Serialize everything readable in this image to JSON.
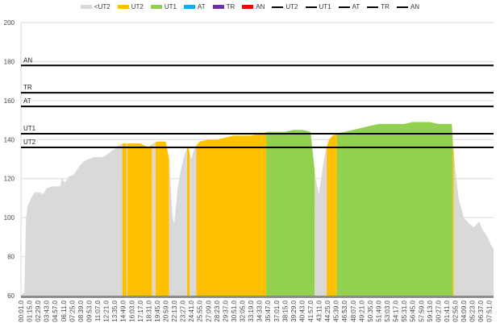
{
  "chart_data": {
    "type": "area",
    "title": "",
    "xlabel": "",
    "ylabel": "",
    "ylim": [
      60,
      200
    ],
    "yticks": [
      60,
      80,
      100,
      120,
      140,
      160,
      180,
      200
    ],
    "grid": "horizontal",
    "legend_position": "top",
    "legend": [
      {
        "name": "<UT2",
        "kind": "area",
        "color": "#d9d9d9"
      },
      {
        "name": "UT2",
        "kind": "area",
        "color": "#ffc000"
      },
      {
        "name": "UT1",
        "kind": "area",
        "color": "#92d050"
      },
      {
        "name": "AT",
        "kind": "area",
        "color": "#00b0f0"
      },
      {
        "name": "TR",
        "kind": "area",
        "color": "#7030a0"
      },
      {
        "name": "AN",
        "kind": "area",
        "color": "#ff0000"
      },
      {
        "name": "UT2",
        "kind": "line",
        "color": "#000000"
      },
      {
        "name": "UT1",
        "kind": "line",
        "color": "#000000"
      },
      {
        "name": "AT",
        "kind": "line",
        "color": "#000000"
      },
      {
        "name": "TR",
        "kind": "line",
        "color": "#000000"
      },
      {
        "name": "AN",
        "kind": "line",
        "color": "#000000"
      }
    ],
    "threshold_lines": [
      {
        "name": "UT2",
        "value": 136
      },
      {
        "name": "UT1",
        "value": 143
      },
      {
        "name": "AT",
        "value": 157
      },
      {
        "name": "TR",
        "value": 164
      },
      {
        "name": "AN",
        "value": 178
      }
    ],
    "x_tick_labels": [
      "00:01.0",
      "01:15.0",
      "02:29.0",
      "03:43.0",
      "04:57.0",
      "06:11.0",
      "07:25.0",
      "08:39.0",
      "09:53.0",
      "11:07.0",
      "12:21.0",
      "13:35.0",
      "14:49.0",
      "16:03.0",
      "17:17.0",
      "18:31.0",
      "19:45.0",
      "20:59.0",
      "22:13.0",
      "23:27.0",
      "24:41.0",
      "25:55.0",
      "27:09.0",
      "28:23.0",
      "29:37.0",
      "30:51.0",
      "32:05.0",
      "33:19.0",
      "34:33.0",
      "35:47.0",
      "37:01.0",
      "38:15.0",
      "39:29.0",
      "40:43.0",
      "41:57.0",
      "43:11.0",
      "44:25.0",
      "45:39.0",
      "46:53.0",
      "48:07.0",
      "49:21.0",
      "50:35.0",
      "51:49.0",
      "53:03.0",
      "54:17.0",
      "55:31.0",
      "56:45.0",
      "57:59.0",
      "59:13.0",
      "00:27.0",
      "01:41.0",
      "02:55.0",
      "04:09.0",
      "05:23.0",
      "06:37.0",
      "07:51.0"
    ],
    "series_profile": {
      "description": "Heart-rate over time, colored by zone; x in tick-index units (0..55.5)",
      "points": [
        [
          0,
          60
        ],
        [
          0.4,
          62
        ],
        [
          0.6,
          100
        ],
        [
          0.8,
          106
        ],
        [
          1.2,
          110
        ],
        [
          1.6,
          113
        ],
        [
          2.2,
          113
        ],
        [
          2.6,
          112
        ],
        [
          3,
          115
        ],
        [
          3.6,
          116
        ],
        [
          4.6,
          116
        ],
        [
          4.8,
          120
        ],
        [
          5.2,
          118
        ],
        [
          5.6,
          121
        ],
        [
          6.2,
          122
        ],
        [
          6.8,
          126
        ],
        [
          7.4,
          129
        ],
        [
          8,
          130
        ],
        [
          8.6,
          131
        ],
        [
          9.6,
          131
        ],
        [
          10,
          132
        ],
        [
          10.6,
          134
        ],
        [
          11,
          135
        ],
        [
          11.4,
          137
        ],
        [
          12,
          138
        ],
        [
          13,
          138
        ],
        [
          14,
          138
        ],
        [
          15,
          136
        ],
        [
          15.5,
          138
        ],
        [
          16,
          139
        ],
        [
          17,
          139
        ],
        [
          17.4,
          130
        ],
        [
          17.8,
          100
        ],
        [
          18,
          97
        ],
        [
          18.4,
          115
        ],
        [
          18.8,
          125
        ],
        [
          19.2,
          132
        ],
        [
          19.6,
          137
        ],
        [
          20,
          130
        ],
        [
          20.4,
          136
        ],
        [
          21,
          139
        ],
        [
          22,
          140
        ],
        [
          23,
          140
        ],
        [
          24,
          141
        ],
        [
          25,
          142
        ],
        [
          26,
          142
        ],
        [
          27,
          142
        ],
        [
          28,
          143
        ],
        [
          29,
          144
        ],
        [
          30,
          144
        ],
        [
          31,
          144
        ],
        [
          32,
          145
        ],
        [
          33,
          145
        ],
        [
          34,
          144
        ],
        [
          34.6,
          120
        ],
        [
          35,
          112
        ],
        [
          35.4,
          125
        ],
        [
          35.8,
          135
        ],
        [
          36.2,
          140
        ],
        [
          36.6,
          142
        ],
        [
          37,
          143
        ],
        [
          38,
          144
        ],
        [
          39,
          145
        ],
        [
          40,
          146
        ],
        [
          41,
          147
        ],
        [
          42,
          148
        ],
        [
          43,
          148
        ],
        [
          44,
          148
        ],
        [
          45,
          148
        ],
        [
          46,
          149
        ],
        [
          47,
          149
        ],
        [
          48,
          149
        ],
        [
          49,
          148
        ],
        [
          50,
          148
        ],
        [
          50.6,
          148
        ],
        [
          50.8,
          135
        ],
        [
          51,
          125
        ],
        [
          51.4,
          110
        ],
        [
          52,
          100
        ],
        [
          52.6,
          97
        ],
        [
          53.2,
          95
        ],
        [
          53.8,
          98
        ],
        [
          54.2,
          94
        ],
        [
          54.8,
          90
        ],
        [
          55.2,
          86
        ],
        [
          55.5,
          84
        ]
      ]
    },
    "zone_bands": [
      {
        "zone": "<UT2",
        "from": 0,
        "to": 11.9
      },
      {
        "zone": "UT2",
        "from": 11.9,
        "to": 12.4
      },
      {
        "zone": "<UT2",
        "from": 12.4,
        "to": 12.5
      },
      {
        "zone": "UT2",
        "from": 12.5,
        "to": 15.4
      },
      {
        "zone": "<UT2",
        "from": 15.4,
        "to": 15.8
      },
      {
        "zone": "UT2",
        "from": 15.8,
        "to": 17.4
      },
      {
        "zone": "<UT2",
        "from": 17.4,
        "to": 19.5
      },
      {
        "zone": "UT2",
        "from": 19.5,
        "to": 19.8
      },
      {
        "zone": "<UT2",
        "from": 19.8,
        "to": 20.6
      },
      {
        "zone": "UT2",
        "from": 20.6,
        "to": 28.8
      },
      {
        "zone": "UT1",
        "from": 28.8,
        "to": 34.5
      },
      {
        "zone": "<UT2",
        "from": 34.5,
        "to": 35.9
      },
      {
        "zone": "UT2",
        "from": 35.9,
        "to": 37.1
      },
      {
        "zone": "UT1",
        "from": 37.1,
        "to": 50.7
      },
      {
        "zone": "UT2",
        "from": 50.7,
        "to": 50.85
      },
      {
        "zone": "<UT2",
        "from": 50.85,
        "to": 55.5
      }
    ]
  }
}
